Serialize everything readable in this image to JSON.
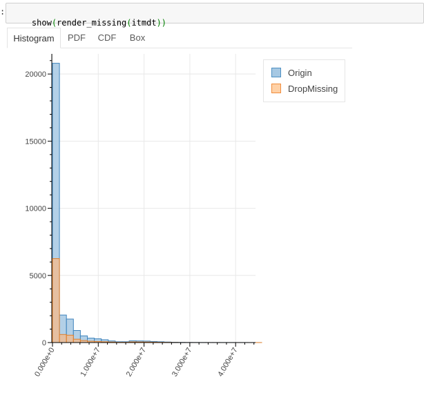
{
  "notebook": {
    "prompt_marker": ":",
    "code_parts": [
      {
        "text": "show",
        "color": "#000000"
      },
      {
        "text": "(",
        "color": "#008000"
      },
      {
        "text": "render_missing",
        "color": "#000000"
      },
      {
        "text": "(",
        "color": "#008000"
      },
      {
        "text": "itmdt",
        "color": "#000000"
      },
      {
        "text": "))",
        "color": "#008000"
      }
    ]
  },
  "tabs": [
    {
      "label": "Histogram",
      "active": true
    },
    {
      "label": "PDF",
      "active": false
    },
    {
      "label": "CDF",
      "active": false
    },
    {
      "label": "Box",
      "active": false
    }
  ],
  "legend": {
    "items": [
      {
        "label": "Origin",
        "fill": "#a6c8e3",
        "stroke": "#4c8fc2"
      },
      {
        "label": "DropMissing",
        "fill": "#ffd1a6",
        "stroke": "#f08c3c"
      }
    ]
  },
  "colors": {
    "origin_fill": "#a6c8e3",
    "origin_stroke": "#3f84bd",
    "drop_fill": "#f5b98a",
    "drop_stroke": "#e07f2a",
    "grid": "#e8e8e8",
    "axis": "#000000"
  },
  "chart_data": {
    "type": "bar",
    "subtype": "overlaid-histogram",
    "title": "",
    "xlabel": "",
    "ylabel": "",
    "xlim": [
      -100000.0,
      4450000.0
    ],
    "ylim": [
      0,
      21500
    ],
    "bin_width": 1500000.0,
    "bin_start": 0,
    "x_ticks": [
      0,
      10000000,
      20000000,
      30000000,
      40000000
    ],
    "x_tick_labels": [
      "0.000e+0",
      "1.000e+7",
      "2.000e+7",
      "3.000e+7",
      "4.000e+7"
    ],
    "x_tick_scale": 10000000.0,
    "y_ticks": [
      0,
      5000,
      10000,
      15000,
      20000
    ],
    "y_tick_labels": [
      "0",
      "5000",
      "10000",
      "15000",
      "20000"
    ],
    "grid": true,
    "legend_position": "outside-right-top",
    "series": [
      {
        "name": "Origin",
        "values": [
          20800,
          2050,
          1750,
          900,
          500,
          330,
          280,
          210,
          120,
          60,
          60,
          130,
          120,
          110,
          80,
          60,
          40,
          25,
          15,
          10,
          8,
          6,
          5,
          5,
          4,
          4,
          3,
          3,
          2,
          2
        ]
      },
      {
        "name": "DropMissing",
        "values": [
          6250,
          600,
          550,
          250,
          150,
          100,
          80,
          60,
          40,
          20,
          20,
          50,
          45,
          40,
          30,
          20,
          15,
          10,
          5,
          4,
          3,
          2,
          2,
          2,
          1,
          1,
          1,
          1,
          1,
          1
        ]
      }
    ]
  }
}
